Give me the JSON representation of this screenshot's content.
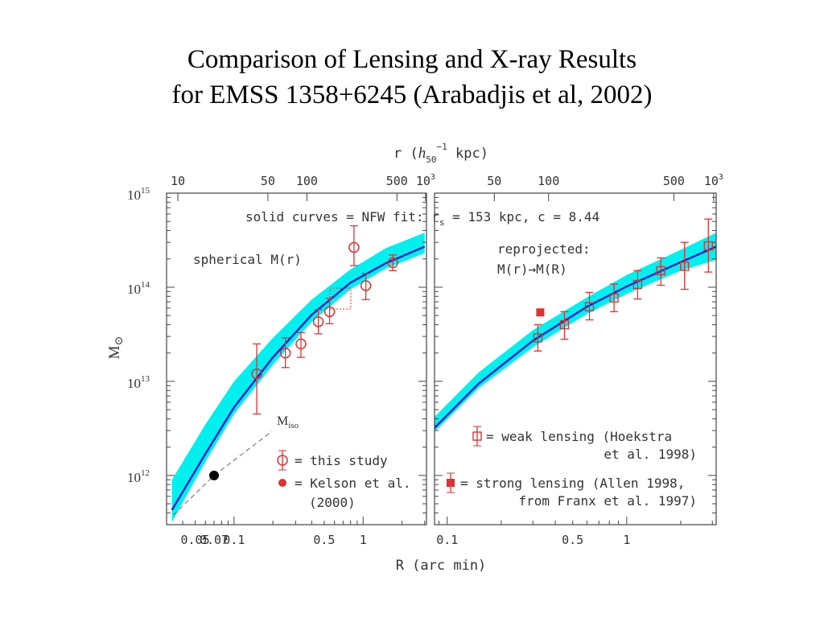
{
  "title": {
    "line1": "Comparison of Lensing and X-ray Results",
    "line2": "for EMSS 1358+6245 (Arabadjis et al, 2002)"
  },
  "chart_data": {
    "type": "scatter",
    "y_axis": {
      "label": "M",
      "label_symbol": "⊙",
      "scale": "log",
      "range": [
        300000000000.0,
        1000000000000000.0
      ],
      "tick_values": [
        1000000000000.0,
        10000000000000.0,
        100000000000000.0,
        1000000000000000.0
      ],
      "tick_exponents": [
        "12",
        "13",
        "14",
        "15"
      ]
    },
    "top_axis": {
      "label_prefix": "r (",
      "label_h": "h",
      "label_sub": "50",
      "label_sup": "−1",
      "label_suffix": " kpc)"
    },
    "bottom_axis": {
      "label": "R (arc min)",
      "scale": "log"
    },
    "annotation_nfw": "solid curves = NFW fit:  r",
    "annotation_nfw_sub": "s",
    "annotation_nfw_tail": " = 153 kpc,  c = 8.44",
    "panels": [
      {
        "name": "spherical",
        "text": "spherical M(r)",
        "xlim": [
          0.03,
          3.1
        ],
        "bottom_ticks": [
          {
            "value": 0.05,
            "label": "0.05"
          },
          {
            "value": 0.07,
            "label": "0.07"
          },
          {
            "value": 0.1,
            "label": "0.1"
          },
          {
            "value": 0.5,
            "label": "0.5"
          },
          {
            "value": 1,
            "label": "1"
          }
        ],
        "top_ticks": [
          {
            "value": 0.0367,
            "label": "10"
          },
          {
            "value": 0.183,
            "label": "50"
          },
          {
            "value": 0.367,
            "label": "100"
          },
          {
            "value": 1.83,
            "label": "500"
          },
          {
            "value": 3.05,
            "label": "10",
            "sup": "3"
          }
        ],
        "band_low": [
          [
            0.033,
            320000000000.0
          ],
          [
            0.06,
            1400000000000.0
          ],
          [
            0.1,
            4500000000000.0
          ],
          [
            0.2,
            15000000000000.0
          ],
          [
            0.4,
            43000000000000.0
          ],
          [
            0.8,
            95000000000000.0
          ],
          [
            1.5,
            158000000000000.0
          ],
          [
            3.0,
            230000000000000.0
          ]
        ],
        "band_high": [
          [
            0.033,
            900000000000.0
          ],
          [
            0.06,
            3500000000000.0
          ],
          [
            0.1,
            10000000000000.0
          ],
          [
            0.2,
            29000000000000.0
          ],
          [
            0.4,
            74000000000000.0
          ],
          [
            0.8,
            155000000000000.0
          ],
          [
            1.5,
            260000000000000.0
          ],
          [
            3.0,
            380000000000000.0
          ]
        ],
        "fit_curve": [
          [
            0.033,
            430000000000.0
          ],
          [
            0.06,
            1700000000000.0
          ],
          [
            0.1,
            5300000000000.0
          ],
          [
            0.2,
            18000000000000.0
          ],
          [
            0.4,
            51000000000000.0
          ],
          [
            0.8,
            112000000000000.0
          ],
          [
            1.5,
            180000000000000.0
          ],
          [
            3.0,
            270000000000000.0
          ]
        ],
        "this_study": [
          {
            "x": 0.15,
            "y": 12000000000000.0,
            "ylo": 4500000000000.0,
            "yhi": 25000000000000.0
          },
          {
            "x": 0.25,
            "y": 20000000000000.0,
            "ylo": 14000000000000.0,
            "yhi": 29000000000000.0
          },
          {
            "x": 0.33,
            "y": 25000000000000.0,
            "ylo": 18000000000000.0,
            "yhi": 33000000000000.0
          },
          {
            "x": 0.45,
            "y": 43000000000000.0,
            "ylo": 32000000000000.0,
            "yhi": 58000000000000.0
          },
          {
            "x": 0.55,
            "y": 55000000000000.0,
            "ylo": 41000000000000.0,
            "yhi": 76000000000000.0
          },
          {
            "x": 0.85,
            "y": 265000000000000.0,
            "ylo": 170000000000000.0,
            "yhi": 450000000000000.0
          },
          {
            "x": 1.05,
            "y": 104000000000000.0,
            "ylo": 74000000000000.0,
            "yhi": 140000000000000.0
          },
          {
            "x": 1.7,
            "y": 182000000000000.0,
            "ylo": 150000000000000.0,
            "yhi": 220000000000000.0
          }
        ],
        "kelson": {
          "x": 0.07,
          "y": 1000000000000.0
        },
        "miso_label": "M",
        "miso_sub": "iso",
        "legend": [
          {
            "marker": "open-circle-errorbar",
            "text": "= this study"
          },
          {
            "marker": "filled-circle",
            "text": "= Kelson et al."
          },
          {
            "marker": "none",
            "text": "(2000)"
          }
        ]
      },
      {
        "name": "reprojected",
        "text_line1": "reprojected:",
        "text_line2": "M(r)→M(R)",
        "xlim": [
          0.085,
          3.15
        ],
        "bottom_ticks": [
          {
            "value": 0.1,
            "label": "0.1"
          },
          {
            "value": 0.5,
            "label": "0.5"
          },
          {
            "value": 1,
            "label": "1"
          }
        ],
        "top_ticks": [
          {
            "value": 0.183,
            "label": "50"
          },
          {
            "value": 0.367,
            "label": "100"
          },
          {
            "value": 1.83,
            "label": "500"
          },
          {
            "value": 3.05,
            "label": "10",
            "sup": "3"
          }
        ],
        "band_low": [
          [
            0.085,
            2900000000000.0
          ],
          [
            0.15,
            8500000000000.0
          ],
          [
            0.3,
            23000000000000.0
          ],
          [
            0.6,
            52000000000000.0
          ],
          [
            1.0,
            85000000000000.0
          ],
          [
            2.0,
            150000000000000.0
          ],
          [
            3.15,
            195000000000000.0
          ]
        ],
        "band_high": [
          [
            0.085,
            4200000000000.0
          ],
          [
            0.15,
            12500000000000.0
          ],
          [
            0.3,
            35000000000000.0
          ],
          [
            0.6,
            78000000000000.0
          ],
          [
            1.0,
            135000000000000.0
          ],
          [
            2.0,
            250000000000000.0
          ],
          [
            3.15,
            380000000000000.0
          ]
        ],
        "fit_curve": [
          [
            0.085,
            3200000000000.0
          ],
          [
            0.15,
            9500000000000.0
          ],
          [
            0.3,
            27000000000000.0
          ],
          [
            0.6,
            62000000000000.0
          ],
          [
            1.0,
            102000000000000.0
          ],
          [
            2.0,
            185000000000000.0
          ],
          [
            3.15,
            270000000000000.0
          ]
        ],
        "weak_lensing": [
          {
            "x": 0.32,
            "y": 29000000000000.0,
            "ylo": 21000000000000.0,
            "yhi": 40000000000000.0
          },
          {
            "x": 0.45,
            "y": 40000000000000.0,
            "ylo": 28000000000000.0,
            "yhi": 55000000000000.0
          },
          {
            "x": 0.62,
            "y": 62000000000000.0,
            "ylo": 45000000000000.0,
            "yhi": 88000000000000.0
          },
          {
            "x": 0.85,
            "y": 77000000000000.0,
            "ylo": 55000000000000.0,
            "yhi": 108000000000000.0
          },
          {
            "x": 1.15,
            "y": 107000000000000.0,
            "ylo": 75000000000000.0,
            "yhi": 150000000000000.0
          },
          {
            "x": 1.55,
            "y": 150000000000000.0,
            "ylo": 105000000000000.0,
            "yhi": 205000000000000.0
          },
          {
            "x": 2.1,
            "y": 167000000000000.0,
            "ylo": 95000000000000.0,
            "yhi": 300000000000000.0
          },
          {
            "x": 2.85,
            "y": 275000000000000.0,
            "ylo": 145000000000000.0,
            "yhi": 530000000000000.0
          }
        ],
        "strong_lensing": {
          "x": 0.33,
          "y": 54000000000000.0
        },
        "legend": [
          {
            "marker": "open-square-errorbar",
            "text": "= weak lensing (Hoekstra"
          },
          {
            "marker": "none",
            "text": "et al. 1998)"
          },
          {
            "marker": "filled-square-errorbar",
            "text": "= strong lensing (Allen 1998,"
          },
          {
            "marker": "none",
            "text": "from Franx et al. 1997)"
          }
        ]
      }
    ],
    "colors": {
      "band": "#00f0f0",
      "curve": "#1a22cc",
      "data": "#e03030",
      "axis": "#444444",
      "text": "#333333"
    }
  }
}
